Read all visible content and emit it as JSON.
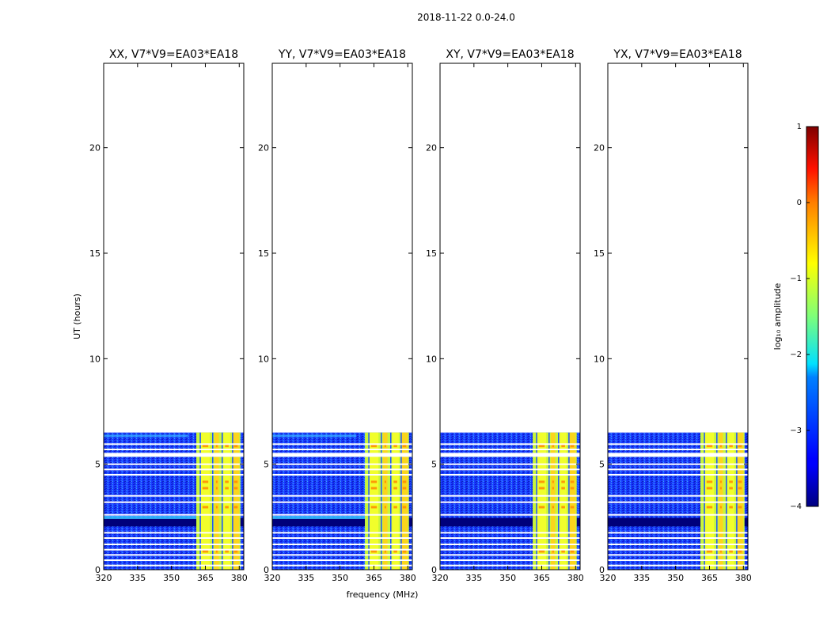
{
  "figure": {
    "suptitle": "2018-11-22 0.0-24.0",
    "xlabel": "frequency (MHz)",
    "ylabel": "UT (hours)",
    "colorbar_label": "log₁₀ amplitude",
    "colormap": "jet"
  },
  "chart_data": {
    "type": "heatmap",
    "title": "2018-11-22 0.0-24.0",
    "xlabel": "frequency (MHz)",
    "ylabel": "UT (hours)",
    "xlim": [
      320,
      382
    ],
    "ylim": [
      0,
      24
    ],
    "x_ticks": [
      "320",
      "335",
      "350",
      "365",
      "380"
    ],
    "y_ticks": [
      "0",
      "5",
      "10",
      "15",
      "20"
    ],
    "data_time_range_hours": [
      0,
      6.5
    ],
    "flagged_time_bands_hours": [
      0.2,
      0.45,
      0.7,
      0.95,
      1.2,
      1.5,
      1.75,
      2.6,
      3.2,
      3.5,
      4.5,
      4.75,
      5.0,
      5.5,
      5.7,
      5.95
    ],
    "rfi_channel_blocks_mhz": [
      [
        363,
        367
      ],
      [
        369,
        371
      ],
      [
        373,
        376
      ],
      [
        377,
        380
      ]
    ],
    "panels": [
      {
        "title": "XX, V7*V9=EA03*EA18",
        "rfi_start_mhz": 361
      },
      {
        "title": "YY, V7*V9=EA03*EA18",
        "rfi_start_mhz": 361
      },
      {
        "title": "XY, V7*V9=EA03*EA18",
        "rfi_start_mhz": 361
      },
      {
        "title": "YX, V7*V9=EA03*EA18",
        "rfi_start_mhz": 361
      }
    ],
    "colorbar": {
      "label": "log₁₀ amplitude",
      "range": [
        -4,
        1
      ],
      "ticks": [
        "1",
        "0",
        "−1",
        "−2",
        "−3",
        "−4"
      ]
    }
  }
}
